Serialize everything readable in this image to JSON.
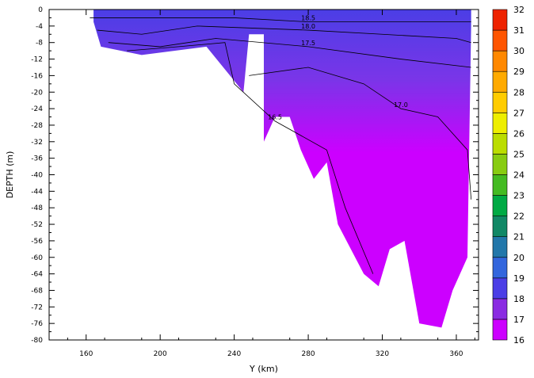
{
  "chart_data": {
    "type": "heatmap",
    "title": "",
    "xlabel": "Y (km)",
    "ylabel": "DEPTH (m)",
    "xlim": [
      140,
      372
    ],
    "ylim": [
      -80,
      0
    ],
    "x_ticks": [
      160,
      200,
      240,
      280,
      320,
      360
    ],
    "y_ticks": [
      0,
      -4,
      -8,
      -12,
      -16,
      -20,
      -24,
      -28,
      -32,
      -36,
      -40,
      -44,
      -48,
      -52,
      -56,
      -60,
      -64,
      -68,
      -72,
      -76,
      -80
    ],
    "colorbar": {
      "min": 16,
      "max": 32,
      "ticks": [
        16,
        17,
        18,
        19,
        20,
        21,
        22,
        23,
        24,
        25,
        26,
        27,
        28,
        29,
        30,
        31,
        32
      ],
      "colors": [
        "#cc00ff",
        "#8a2be2",
        "#4b3ee6",
        "#3366dd",
        "#2277aa",
        "#118866",
        "#00aa44",
        "#44bb22",
        "#88cc11",
        "#bbdd00",
        "#eeee00",
        "#ffcc00",
        "#ffaa00",
        "#ff8800",
        "#ff5500",
        "#ee2200",
        "#cc0000"
      ]
    },
    "domain_fill_color_shallow": "#4b3ee6",
    "domain_fill_color_deep": "#cc00ff",
    "bottom_profile": [
      {
        "x": 164,
        "depth": -3
      },
      {
        "x": 168,
        "depth": -9
      },
      {
        "x": 190,
        "depth": -11
      },
      {
        "x": 225,
        "depth": -9
      },
      {
        "x": 245,
        "depth": -20
      },
      {
        "x": 248,
        "depth": -6
      },
      {
        "x": 256,
        "depth": -6
      },
      {
        "x": 256,
        "depth": -32
      },
      {
        "x": 262,
        "depth": -26
      },
      {
        "x": 270,
        "depth": -26
      },
      {
        "x": 276,
        "depth": -34
      },
      {
        "x": 283,
        "depth": -41
      },
      {
        "x": 290,
        "depth": -37
      },
      {
        "x": 296,
        "depth": -52
      },
      {
        "x": 310,
        "depth": -64
      },
      {
        "x": 318,
        "depth": -67
      },
      {
        "x": 324,
        "depth": -58
      },
      {
        "x": 332,
        "depth": -56
      },
      {
        "x": 340,
        "depth": -76
      },
      {
        "x": 352,
        "depth": -77
      },
      {
        "x": 358,
        "depth": -68
      },
      {
        "x": 366,
        "depth": -60
      },
      {
        "x": 368,
        "depth": -4
      }
    ],
    "contours": [
      {
        "level": 18.5,
        "label": "18.5",
        "points": [
          [
            162,
            -2
          ],
          [
            200,
            -2
          ],
          [
            240,
            -2
          ],
          [
            280,
            -3
          ],
          [
            320,
            -3
          ],
          [
            368,
            -3
          ]
        ]
      },
      {
        "level": 18.0,
        "label": "18.0",
        "points": [
          [
            166,
            -5
          ],
          [
            190,
            -6
          ],
          [
            220,
            -4
          ],
          [
            280,
            -5
          ],
          [
            320,
            -6
          ],
          [
            360,
            -7
          ],
          [
            368,
            -8
          ]
        ]
      },
      {
        "level": 17.5,
        "label": "17.5",
        "points": [
          [
            172,
            -8
          ],
          [
            200,
            -9
          ],
          [
            230,
            -7
          ],
          [
            280,
            -9
          ],
          [
            330,
            -12
          ],
          [
            368,
            -14
          ]
        ]
      },
      {
        "level": 17.0,
        "label": "17.0",
        "points": [
          [
            248,
            -16
          ],
          [
            280,
            -14
          ],
          [
            310,
            -18
          ],
          [
            330,
            -24
          ],
          [
            350,
            -26
          ],
          [
            366,
            -34
          ],
          [
            368,
            -46
          ]
        ]
      },
      {
        "level": 16.5,
        "label": "16.5",
        "points": [
          [
            182,
            -10
          ],
          [
            210,
            -9
          ],
          [
            235,
            -8
          ],
          [
            240,
            -18
          ],
          [
            262,
            -27
          ],
          [
            290,
            -34
          ],
          [
            300,
            -48
          ],
          [
            315,
            -64
          ]
        ]
      }
    ]
  }
}
